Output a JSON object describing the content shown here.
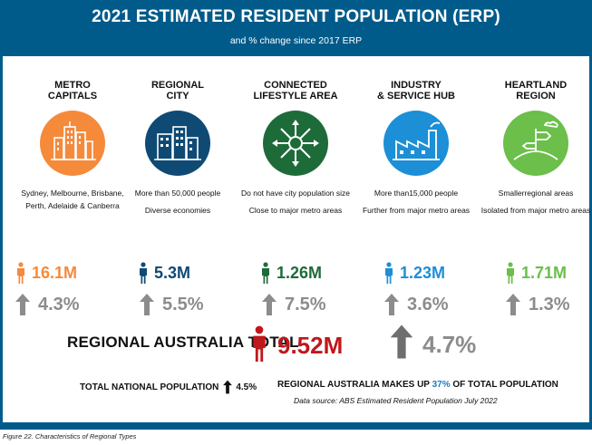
{
  "header": {
    "title": "2021 ESTIMATED RESIDENT POPULATION (ERP)",
    "subtitle": "and % change since 2017 ERP"
  },
  "colors": {
    "header_bg": "#005b8a",
    "metro": "#f58a3b",
    "regional_city": "#0f4a75",
    "connected": "#1e6b3a",
    "industry": "#1c8fd6",
    "heartland": "#6bbf4a",
    "total_red": "#c0171c",
    "arrow_grey": "#8c8c8c"
  },
  "categories": [
    {
      "title_line1": "METRO",
      "title_line2": "CAPITALS",
      "icon": "city-skyline-icon",
      "desc": [
        "Sydney, Melbourne, Brisbane, Perth, Adelaide & Canberra"
      ],
      "population": "16.1M",
      "change": "4.3%"
    },
    {
      "title_line1": "REGIONAL",
      "title_line2": "CITY",
      "icon": "city-buildings-icon",
      "desc": [
        "More than 50,000 people",
        "Diverse economies"
      ],
      "population": "5.3M",
      "change": "5.5%"
    },
    {
      "title_line1": "CONNECTED",
      "title_line2": "LIFESTYLE AREA",
      "icon": "arrows-network-icon",
      "desc": [
        "Do not have city population size",
        "Close to major metro areas"
      ],
      "population": "1.26M",
      "change": "7.5%"
    },
    {
      "title_line1": "INDUSTRY",
      "title_line2": "& SERVICE HUB",
      "icon": "factory-icon",
      "desc": [
        "More than15,000 people",
        "Further from major metro areas"
      ],
      "population": "1.23M",
      "change": "3.6%"
    },
    {
      "title_line1": "HEARTLAND",
      "title_line2": "REGION",
      "icon": "signpost-hill-icon",
      "desc": [
        "Smallerregional areas",
        "Isolated from major metro areas"
      ],
      "population": "1.71M",
      "change": "1.3%"
    }
  ],
  "total": {
    "label": "REGIONAL AUSTRALIA TOTAL",
    "value": "9.52M",
    "change": "4.7%"
  },
  "national": {
    "label": "TOTAL NATIONAL POPULATION",
    "change": "4.5%"
  },
  "share": {
    "prefix": "REGIONAL AUSTRALIA MAKES UP",
    "pct": "37%",
    "suffix": "OF TOTAL POPULATION"
  },
  "source": "Data source: ABS Estimated Resident Population July 2022",
  "caption": "Figure 22. Characteristics of Regional Types"
}
